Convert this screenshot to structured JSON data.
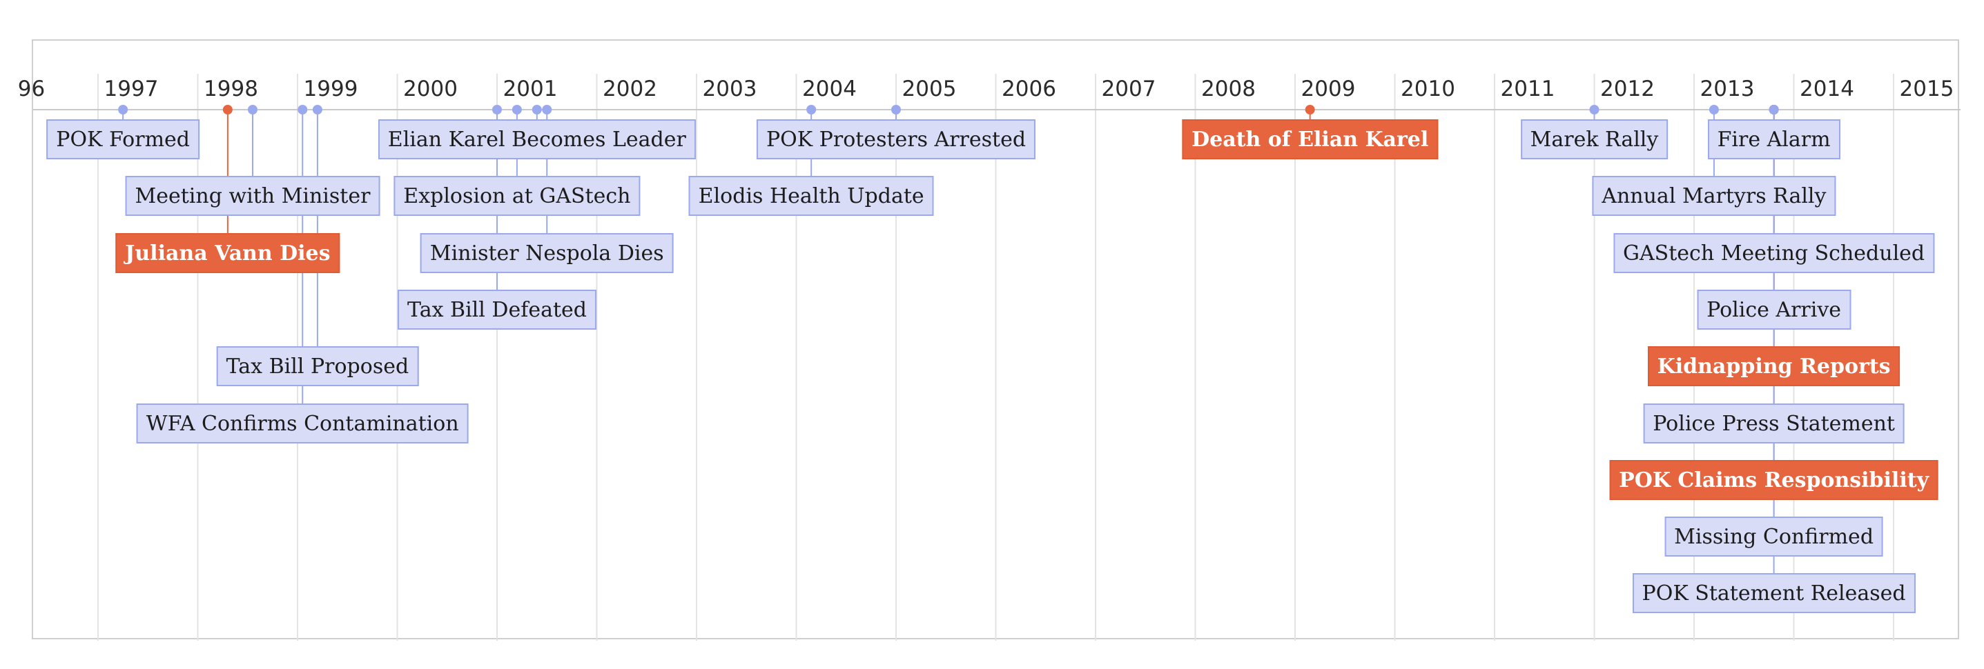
{
  "colors": {
    "normal_fill": "#d9dcf6",
    "normal_stroke": "#9aa9ee",
    "highlight": "#e6653f",
    "axis": "#c8c8c8",
    "grid": "#e3e3e3"
  },
  "axis": {
    "years": [
      {
        "label": "96",
        "year": 1996
      },
      {
        "label": "1997",
        "year": 1997
      },
      {
        "label": "1998",
        "year": 1998
      },
      {
        "label": "1999",
        "year": 1999
      },
      {
        "label": "2000",
        "year": 2000
      },
      {
        "label": "2001",
        "year": 2001
      },
      {
        "label": "2002",
        "year": 2002
      },
      {
        "label": "2003",
        "year": 2003
      },
      {
        "label": "2004",
        "year": 2004
      },
      {
        "label": "2005",
        "year": 2005
      },
      {
        "label": "2006",
        "year": 2006
      },
      {
        "label": "2007",
        "year": 2007
      },
      {
        "label": "2008",
        "year": 2008
      },
      {
        "label": "2009",
        "year": 2009
      },
      {
        "label": "2010",
        "year": 2010
      },
      {
        "label": "2011",
        "year": 2011
      },
      {
        "label": "2012",
        "year": 2012
      },
      {
        "label": "2013",
        "year": 2013
      },
      {
        "label": "2014",
        "year": 2014
      },
      {
        "label": "2015",
        "year": 2015
      }
    ]
  },
  "events": [
    {
      "label": "POK Formed",
      "date": 1997.25,
      "row": 0,
      "highlight": false
    },
    {
      "label": "Meeting with Minister",
      "date": 1998.55,
      "row": 1,
      "highlight": false
    },
    {
      "label": "Juliana Vann Dies",
      "date": 1998.3,
      "row": 2,
      "highlight": true
    },
    {
      "label": "Tax Bill Proposed",
      "date": 1999.2,
      "row": 4,
      "highlight": false
    },
    {
      "label": "WFA Confirms Contamination",
      "date": 1999.05,
      "row": 5,
      "highlight": false
    },
    {
      "label": "Elian Karel Becomes Leader",
      "date": 2001.4,
      "row": 0,
      "highlight": false
    },
    {
      "label": "Explosion at GAStech",
      "date": 2001.2,
      "row": 1,
      "highlight": false
    },
    {
      "label": "Minister Nespola Dies",
      "date": 2001.5,
      "row": 2,
      "highlight": false
    },
    {
      "label": "Tax Bill Defeated",
      "date": 2001.0,
      "row": 3,
      "highlight": false
    },
    {
      "label": "POK Protesters Arrested",
      "date": 2005.0,
      "row": 0,
      "highlight": false
    },
    {
      "label": "Elodis Health Update",
      "date": 2004.15,
      "row": 1,
      "highlight": false
    },
    {
      "label": "Death of Elian Karel",
      "date": 2009.15,
      "row": 0,
      "highlight": true
    },
    {
      "label": "Marek Rally",
      "date": 2012.0,
      "row": 0,
      "highlight": false
    },
    {
      "label": "Fire Alarm",
      "date": 2013.8,
      "row": 0,
      "highlight": false
    },
    {
      "label": "Annual Martyrs Rally",
      "date": 2013.2,
      "row": 1,
      "highlight": false
    },
    {
      "label": "GAStech Meeting Scheduled",
      "date": 2013.8,
      "row": 2,
      "highlight": false
    },
    {
      "label": "Police Arrive",
      "date": 2013.8,
      "row": 3,
      "highlight": false
    },
    {
      "label": "Kidnapping Reports",
      "date": 2013.8,
      "row": 4,
      "highlight": true
    },
    {
      "label": "Police Press Statement",
      "date": 2013.8,
      "row": 5,
      "highlight": false
    },
    {
      "label": "POK Claims Responsibility",
      "date": 2013.8,
      "row": 6,
      "highlight": true
    },
    {
      "label": "Missing Confirmed",
      "date": 2013.8,
      "row": 7,
      "highlight": false
    },
    {
      "label": "POK Statement Released",
      "date": 2013.8,
      "row": 8,
      "highlight": false
    }
  ]
}
